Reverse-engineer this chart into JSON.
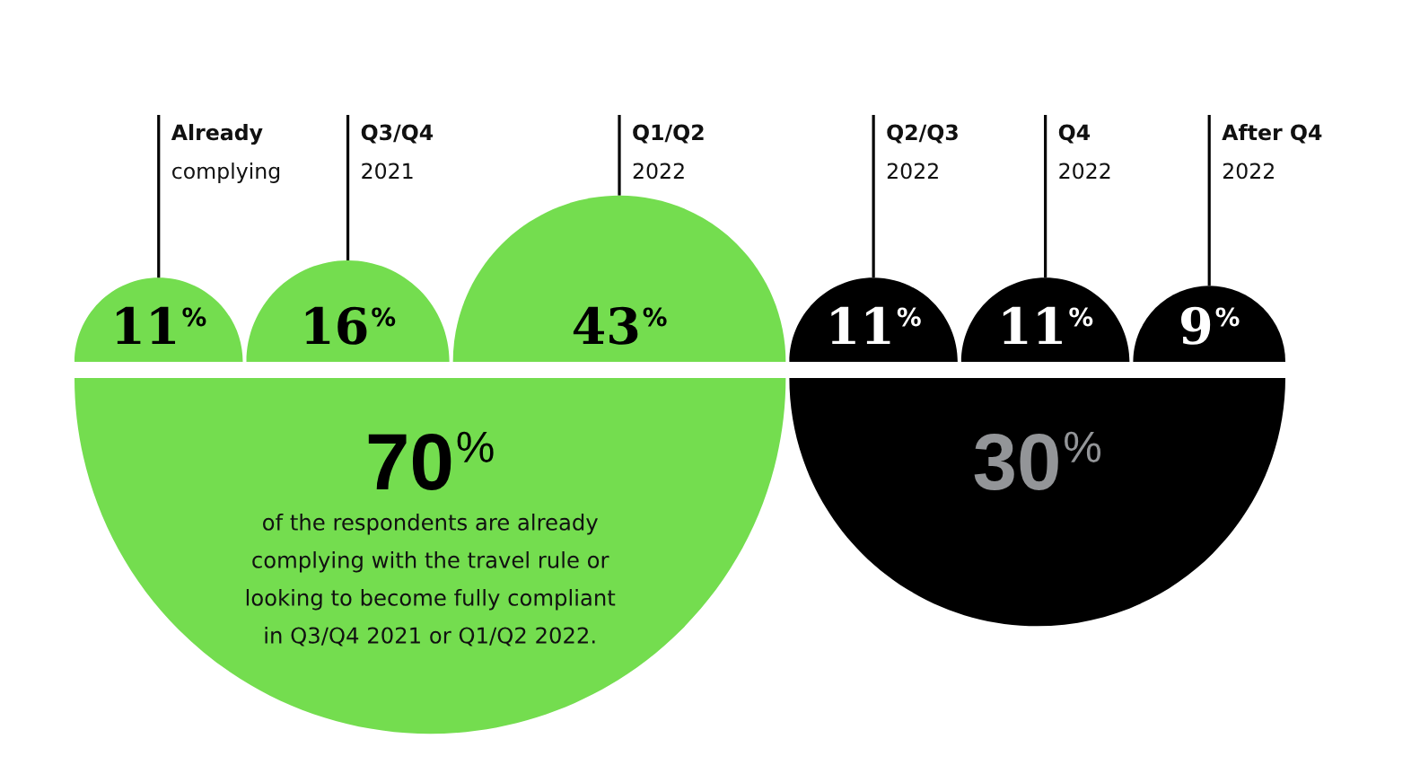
{
  "chart_data": {
    "type": "other",
    "categories": [
      "Already\ncomplying",
      "Q3/Q4\n2021",
      "Q1/Q2\n2022",
      "Q2/Q3\n2022",
      "Q4\n2022",
      "After Q4\n2022"
    ],
    "series": [
      {
        "color": "#74dd4f",
        "values": [
          11,
          16,
          43,
          null,
          null,
          null
        ],
        "value_labels": [
          "11$^{%}$",
          "16$^{%}$",
          "43$^{%}$",
          null,
          null,
          null
        ]
      },
      {
        "color": "#000000",
        "values": [
          null,
          null,
          null,
          11,
          11,
          9
        ],
        "value_labels": [
          null,
          null,
          null,
          "11$^{%}$",
          "11$^{%}$",
          "9$^{%}$"
        ]
      }
    ],
    "totals": [
      "70$^{%}$",
      "30$^{%}$"
    ],
    "annotations": [
      "of the respondents are already\ncomplying with the travel rule or\nlooking to become fully compliant\nin Q3/Q4 2021 or Q1/Q2 2022."
    ]
  }
}
